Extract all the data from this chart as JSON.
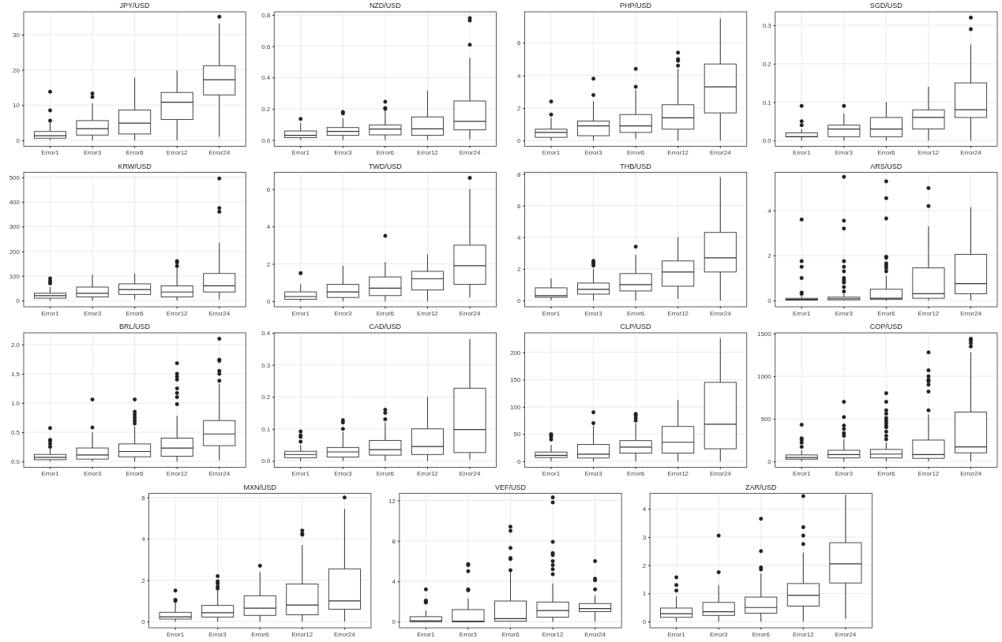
{
  "chart_data": [
    {
      "type": "box",
      "title": "JPY/USD",
      "categories": [
        "Error1",
        "Error3",
        "Error6",
        "Error12",
        "Error24"
      ],
      "ylim": [
        -1.7,
        36.5
      ],
      "yticks": [
        0,
        10,
        20,
        30
      ],
      "grid": true,
      "boxes": [
        {
          "low": 0,
          "q1": 0.6,
          "median": 1.3,
          "q3": 2.5,
          "high": 5,
          "outliers": [
            5.6,
            8.5,
            13.8
          ]
        },
        {
          "low": 0,
          "q1": 1.5,
          "median": 3.3,
          "q3": 5.6,
          "high": 10.5,
          "outliers": [
            12.3,
            13.3
          ]
        },
        {
          "low": 0,
          "q1": 1.8,
          "median": 4.9,
          "q3": 8.6,
          "high": 17.8
        },
        {
          "low": 0,
          "q1": 5.9,
          "median": 10.8,
          "q3": 13.6,
          "high": 19.8
        },
        {
          "low": 1,
          "q1": 12.9,
          "median": 17.2,
          "q3": 21.2,
          "high": 33.2,
          "outliers": [
            35.1
          ]
        }
      ]
    },
    {
      "type": "box",
      "title": "NZD/USD",
      "categories": [
        "Error1",
        "Error3",
        "Error6",
        "Error12",
        "Error24"
      ],
      "ylim": [
        -0.04,
        0.82
      ],
      "yticks": [
        {
          "value": 0,
          "label": "0.0"
        },
        {
          "value": 0.2,
          "label": "0.2"
        },
        {
          "value": 0.4,
          "label": "0.4"
        },
        {
          "value": 0.6,
          "label": "0.6"
        },
        {
          "value": 0.8,
          "label": "0.8"
        }
      ],
      "grid": true,
      "boxes": [
        {
          "low": 0,
          "q1": 0.015,
          "median": 0.03,
          "q3": 0.058,
          "high": 0.11,
          "outliers": [
            0.135
          ]
        },
        {
          "low": 0,
          "q1": 0.03,
          "median": 0.055,
          "q3": 0.08,
          "high": 0.14,
          "outliers": [
            0.17,
            0.18
          ]
        },
        {
          "low": 0,
          "q1": 0.033,
          "median": 0.07,
          "q3": 0.097,
          "high": 0.19,
          "outliers": [
            0.2,
            0.205,
            0.245
          ]
        },
        {
          "low": 0,
          "q1": 0.03,
          "median": 0.072,
          "q3": 0.148,
          "high": 0.315
        },
        {
          "low": 0.005,
          "q1": 0.065,
          "median": 0.12,
          "q3": 0.25,
          "high": 0.525,
          "outliers": [
            0.61,
            0.765,
            0.78
          ]
        }
      ]
    },
    {
      "type": "box",
      "title": "PHP/USD",
      "categories": [
        "Error1",
        "Error3",
        "Error6",
        "Error12",
        "Error24"
      ],
      "ylim": [
        -0.35,
        7.9
      ],
      "yticks": [
        0,
        2,
        4,
        6
      ],
      "grid": true,
      "boxes": [
        {
          "low": 0,
          "q1": 0.2,
          "median": 0.5,
          "q3": 0.7,
          "high": 1.4,
          "outliers": [
            1.6,
            2.4
          ]
        },
        {
          "low": 0,
          "q1": 0.3,
          "median": 0.9,
          "q3": 1.2,
          "high": 2.4,
          "outliers": [
            2.8,
            3.8
          ]
        },
        {
          "low": 0.1,
          "q1": 0.5,
          "median": 0.9,
          "q3": 1.6,
          "high": 3.1,
          "outliers": [
            3.3,
            4.4
          ]
        },
        {
          "low": 0,
          "q1": 0.7,
          "median": 1.4,
          "q3": 2.2,
          "high": 4.4,
          "outliers": [
            4.6,
            4.9,
            5.0,
            5.4
          ]
        },
        {
          "low": 0,
          "q1": 1.7,
          "median": 3.3,
          "q3": 4.7,
          "high": 7.5
        }
      ]
    },
    {
      "type": "box",
      "title": "SGD/USD",
      "categories": [
        "Error1",
        "Error3",
        "Error6",
        "Error12",
        "Error24"
      ],
      "ylim": [
        -0.015,
        0.335
      ],
      "yticks": [
        {
          "value": 0,
          "label": "0.0"
        },
        {
          "value": 0.1,
          "label": "0.1"
        },
        {
          "value": 0.2,
          "label": "0.2"
        },
        {
          "value": 0.3,
          "label": "0.3"
        }
      ],
      "grid": true,
      "boxes": [
        {
          "low": 0,
          "q1": 0.01,
          "median": 0.01,
          "q3": 0.02,
          "high": 0.03,
          "outliers": [
            0.04,
            0.05,
            0.09
          ]
        },
        {
          "low": 0,
          "q1": 0.01,
          "median": 0.03,
          "q3": 0.04,
          "high": 0.07,
          "outliers": [
            0.09
          ]
        },
        {
          "low": 0,
          "q1": 0.01,
          "median": 0.03,
          "q3": 0.06,
          "high": 0.1
        },
        {
          "low": 0,
          "q1": 0.03,
          "median": 0.06,
          "q3": 0.08,
          "high": 0.14
        },
        {
          "low": 0,
          "q1": 0.06,
          "median": 0.08,
          "q3": 0.15,
          "high": 0.25,
          "outliers": [
            0.29,
            0.32
          ]
        }
      ]
    },
    {
      "type": "box",
      "title": "KRW/USD",
      "categories": [
        "Error1",
        "Error3",
        "Error6",
        "Error12",
        "Error24"
      ],
      "ylim": [
        -25,
        520
      ],
      "yticks": [
        0,
        100,
        200,
        300,
        400,
        500
      ],
      "grid": true,
      "boxes": [
        {
          "low": 0,
          "q1": 10,
          "median": 20,
          "q3": 30,
          "high": 55,
          "outliers": [
            70,
            80,
            90
          ]
        },
        {
          "low": 0,
          "q1": 15,
          "median": 30,
          "q3": 55,
          "high": 105
        },
        {
          "low": 5,
          "q1": 25,
          "median": 45,
          "q3": 68,
          "high": 110
        },
        {
          "low": 0,
          "q1": 15,
          "median": 35,
          "q3": 60,
          "high": 130,
          "outliers": [
            140,
            155,
            160
          ]
        },
        {
          "low": 5,
          "q1": 35,
          "median": 60,
          "q3": 110,
          "high": 235,
          "outliers": [
            360,
            375,
            495
          ]
        }
      ]
    },
    {
      "type": "box",
      "title": "TWD/USD",
      "categories": [
        "Error1",
        "Error3",
        "Error6",
        "Error12",
        "Error24"
      ],
      "ylim": [
        -0.3,
        6.9
      ],
      "yticks": [
        0,
        2,
        4,
        6
      ],
      "grid": true,
      "boxes": [
        {
          "low": 0,
          "q1": 0.1,
          "median": 0.25,
          "q3": 0.5,
          "high": 0.9,
          "outliers": [
            1.5
          ]
        },
        {
          "low": 0,
          "q1": 0.2,
          "median": 0.5,
          "q3": 0.9,
          "high": 1.9
        },
        {
          "low": 0,
          "q1": 0.3,
          "median": 0.7,
          "q3": 1.3,
          "high": 2.1,
          "outliers": [
            3.5
          ]
        },
        {
          "low": 0,
          "q1": 0.6,
          "median": 1.2,
          "q3": 1.6,
          "high": 2.5
        },
        {
          "low": 0.2,
          "q1": 0.9,
          "median": 1.9,
          "q3": 3.0,
          "high": 6.0,
          "outliers": [
            6.6
          ]
        }
      ]
    },
    {
      "type": "box",
      "title": "THB/USD",
      "categories": [
        "Error1",
        "Error3",
        "Error6",
        "Error12",
        "Error24"
      ],
      "ylim": [
        -0.4,
        8.1
      ],
      "yticks": [
        0,
        2,
        4,
        6,
        8
      ],
      "grid": true,
      "boxes": [
        {
          "low": 0,
          "q1": 0.2,
          "median": 0.3,
          "q3": 0.8,
          "high": 1.4
        },
        {
          "low": 0,
          "q1": 0.4,
          "median": 0.7,
          "q3": 1.1,
          "high": 2.0,
          "outliers": [
            2.2,
            2.3,
            2.4,
            2.5
          ]
        },
        {
          "low": 0,
          "q1": 0.6,
          "median": 1.0,
          "q3": 1.7,
          "high": 2.9,
          "outliers": [
            3.4
          ]
        },
        {
          "low": 0.1,
          "q1": 0.9,
          "median": 1.8,
          "q3": 2.5,
          "high": 4.0
        },
        {
          "low": 0,
          "q1": 1.8,
          "median": 2.7,
          "q3": 4.3,
          "high": 7.8
        }
      ]
    },
    {
      "type": "box",
      "title": "ARS/USD",
      "categories": [
        "Error1",
        "Error3",
        "Error6",
        "Error12",
        "Error24"
      ],
      "ylim": [
        -0.28,
        5.7
      ],
      "yticks": [
        0,
        2,
        4
      ],
      "grid": true,
      "boxes": [
        {
          "low": 0,
          "q1": 0.02,
          "median": 0.05,
          "q3": 0.1,
          "high": 0.2,
          "outliers": [
            0.3,
            0.35,
            1.0,
            1.5,
            1.75,
            3.6
          ]
        },
        {
          "low": 0,
          "q1": 0.03,
          "median": 0.08,
          "q3": 0.15,
          "high": 0.3,
          "outliers": [
            0.4,
            0.6,
            0.8,
            0.9,
            1.0,
            1.3,
            1.5,
            1.75,
            3.2,
            3.55,
            5.5
          ]
        },
        {
          "low": 0,
          "q1": 0.05,
          "median": 0.1,
          "q3": 0.5,
          "high": 1.1,
          "outliers": [
            1.3,
            1.45,
            1.55,
            1.65,
            1.9,
            1.95,
            3.65,
            4.55,
            5.3
          ]
        },
        {
          "low": 0,
          "q1": 0.1,
          "median": 0.3,
          "q3": 1.45,
          "high": 3.3,
          "outliers": [
            4.2,
            5.0
          ]
        },
        {
          "low": 0,
          "q1": 0.3,
          "median": 0.75,
          "q3": 2.05,
          "high": 4.15
        }
      ]
    },
    {
      "type": "box",
      "title": "BRL/USD",
      "categories": [
        "Error1",
        "Error3",
        "Error6",
        "Error12",
        "Error24"
      ],
      "ylim": [
        -0.1,
        2.2
      ],
      "yticks": [
        {
          "value": 0,
          "label": "0.0"
        },
        {
          "value": 0.5,
          "label": "0.5"
        },
        {
          "value": 1,
          "label": "1.0"
        },
        {
          "value": 1.5,
          "label": "1.5"
        },
        {
          "value": 2,
          "label": "2.0"
        }
      ],
      "grid": true,
      "boxes": [
        {
          "low": 0,
          "q1": 0.03,
          "median": 0.07,
          "q3": 0.12,
          "high": 0.22,
          "outliers": [
            0.25,
            0.3,
            0.35,
            0.37,
            0.57
          ]
        },
        {
          "low": 0,
          "q1": 0.04,
          "median": 0.11,
          "q3": 0.23,
          "high": 0.5,
          "outliers": [
            0.58,
            1.06
          ]
        },
        {
          "low": 0,
          "q1": 0.08,
          "median": 0.17,
          "q3": 0.3,
          "high": 0.6,
          "outliers": [
            0.65,
            0.7,
            0.75,
            0.8,
            0.85,
            1.06
          ]
        },
        {
          "low": 0,
          "q1": 0.09,
          "median": 0.23,
          "q3": 0.4,
          "high": 0.78,
          "outliers": [
            0.98,
            1.1,
            1.17,
            1.25,
            1.4,
            1.45,
            1.5,
            1.68
          ]
        },
        {
          "low": 0.02,
          "q1": 0.27,
          "median": 0.47,
          "q3": 0.7,
          "high": 1.33,
          "outliers": [
            1.38,
            1.5,
            1.55,
            1.72,
            1.74,
            2.1
          ]
        }
      ]
    },
    {
      "type": "box",
      "title": "CAD/USD",
      "categories": [
        "Error1",
        "Error3",
        "Error6",
        "Error12",
        "Error24"
      ],
      "ylim": [
        -0.02,
        0.4
      ],
      "yticks": [
        {
          "value": 0,
          "label": "0.0"
        },
        {
          "value": 0.1,
          "label": "0.1"
        },
        {
          "value": 0.2,
          "label": "0.2"
        },
        {
          "value": 0.3,
          "label": "0.3"
        },
        {
          "value": 0.4,
          "label": "0.4"
        }
      ],
      "grid": true,
      "boxes": [
        {
          "low": 0,
          "q1": 0.01,
          "median": 0.02,
          "q3": 0.03,
          "high": 0.05,
          "outliers": [
            0.06,
            0.075,
            0.08,
            0.092
          ]
        },
        {
          "low": 0,
          "q1": 0.012,
          "median": 0.028,
          "q3": 0.042,
          "high": 0.09,
          "outliers": [
            0.1,
            0.12,
            0.127
          ]
        },
        {
          "low": 0,
          "q1": 0.018,
          "median": 0.035,
          "q3": 0.064,
          "high": 0.12,
          "outliers": [
            0.13,
            0.15,
            0.16
          ]
        },
        {
          "low": 0,
          "q1": 0.02,
          "median": 0.045,
          "q3": 0.1,
          "high": 0.2
        },
        {
          "low": 0.005,
          "q1": 0.026,
          "median": 0.098,
          "q3": 0.227,
          "high": 0.38
        }
      ]
    },
    {
      "type": "box",
      "title": "CLP/USD",
      "categories": [
        "Error1",
        "Error3",
        "Error6",
        "Error12",
        "Error24"
      ],
      "ylim": [
        -11,
        236
      ],
      "yticks": [
        0,
        50,
        100,
        150,
        200
      ],
      "grid": true,
      "boxes": [
        {
          "low": 0,
          "q1": 7,
          "median": 11,
          "q3": 17,
          "high": 30,
          "outliers": [
            40,
            45,
            48,
            50
          ]
        },
        {
          "low": 0,
          "q1": 6,
          "median": 13,
          "q3": 31,
          "high": 65,
          "outliers": [
            70,
            90
          ]
        },
        {
          "low": 0,
          "q1": 15,
          "median": 26,
          "q3": 38,
          "high": 70,
          "outliers": [
            75,
            80,
            85,
            87
          ]
        },
        {
          "low": 0,
          "q1": 15,
          "median": 35,
          "q3": 64,
          "high": 113
        },
        {
          "low": 0,
          "q1": 23,
          "median": 68,
          "q3": 145,
          "high": 226
        }
      ]
    },
    {
      "type": "box",
      "title": "COP/USD",
      "categories": [
        "Error1",
        "Error3",
        "Error6",
        "Error12",
        "Error24"
      ],
      "ylim": [
        -70,
        1510
      ],
      "yticks": [
        0,
        500,
        1000,
        1500
      ],
      "grid": true,
      "boxes": [
        {
          "low": 0,
          "q1": 25,
          "median": 45,
          "q3": 75,
          "high": 130,
          "outliers": [
            170,
            220,
            250,
            270,
            430
          ]
        },
        {
          "low": 0,
          "q1": 40,
          "median": 80,
          "q3": 130,
          "high": 260,
          "outliers": [
            300,
            330,
            380,
            420,
            520,
            700
          ]
        },
        {
          "low": 0,
          "q1": 40,
          "median": 85,
          "q3": 140,
          "high": 220,
          "outliers": [
            260,
            300,
            350,
            400,
            420,
            450,
            480,
            510,
            560,
            600,
            700,
            800
          ]
        },
        {
          "low": 0,
          "q1": 35,
          "median": 80,
          "q3": 250,
          "high": 550,
          "outliers": [
            600,
            820,
            900,
            940,
            960,
            1000,
            1070,
            1280
          ]
        },
        {
          "low": 0,
          "q1": 100,
          "median": 170,
          "q3": 580,
          "high": 1280,
          "outliers": [
            1350,
            1390,
            1420,
            1440
          ]
        }
      ]
    },
    {
      "type": "box",
      "title": "MXN/USD",
      "categories": [
        "Error1",
        "Error3",
        "Error6",
        "Error12",
        "Error24"
      ],
      "ylim": [
        -0.3,
        6.2
      ],
      "yticks": [
        0,
        2,
        4,
        6
      ],
      "grid": true,
      "boxes": [
        {
          "low": 0,
          "q1": 0.12,
          "median": 0.23,
          "q3": 0.45,
          "high": 0.9,
          "outliers": [
            1.0,
            1.05,
            1.5
          ]
        },
        {
          "low": 0,
          "q1": 0.22,
          "median": 0.43,
          "q3": 0.78,
          "high": 1.5,
          "outliers": [
            1.6,
            1.7,
            1.85,
            1.95,
            2.2
          ]
        },
        {
          "low": 0,
          "q1": 0.3,
          "median": 0.65,
          "q3": 1.25,
          "high": 2.4,
          "outliers": [
            2.7
          ]
        },
        {
          "low": 0,
          "q1": 0.33,
          "median": 0.8,
          "q3": 1.82,
          "high": 3.7,
          "outliers": [
            4.2,
            4.25,
            4.4
          ]
        },
        {
          "low": 0,
          "q1": 0.6,
          "median": 1.0,
          "q3": 2.55,
          "high": 5.45,
          "outliers": [
            6.0
          ]
        }
      ]
    },
    {
      "type": "box",
      "title": "VEF/USD",
      "categories": [
        "Error1",
        "Error3",
        "Error6",
        "Error12",
        "Error24"
      ],
      "ylim": [
        -0.6,
        12.7
      ],
      "yticks": [
        0,
        4,
        8,
        12
      ],
      "grid": true,
      "boxes": [
        {
          "low": 0,
          "q1": 0,
          "median": 0.1,
          "q3": 0.5,
          "high": 1.1,
          "outliers": [
            1.9,
            2.0,
            2.1,
            3.2
          ]
        },
        {
          "low": 0,
          "q1": 0,
          "median": 0.05,
          "q3": 1.2,
          "high": 2.3,
          "outliers": [
            3.1,
            3.2,
            5.0,
            5.6,
            5.7
          ]
        },
        {
          "low": 0,
          "q1": 0.05,
          "median": 0.3,
          "q3": 2.05,
          "high": 5.0,
          "outliers": [
            5.1,
            6.2,
            6.3,
            7.3,
            9.0,
            9.4
          ]
        },
        {
          "low": 0,
          "q1": 0.45,
          "median": 1.1,
          "q3": 1.95,
          "high": 3.8,
          "outliers": [
            4.7,
            5.2,
            5.6,
            6.0,
            6.6,
            6.8,
            7.9,
            11.8,
            12.3
          ]
        },
        {
          "low": 0,
          "q1": 1.0,
          "median": 1.3,
          "q3": 1.8,
          "high": 2.6,
          "outliers": [
            3.2,
            4.1,
            4.25,
            6.0
          ]
        }
      ]
    },
    {
      "type": "box",
      "title": "ZAR/USD",
      "categories": [
        "Error1",
        "Error3",
        "Error6",
        "Error12",
        "Error24"
      ],
      "ylim": [
        -0.22,
        4.55
      ],
      "yticks": [
        0,
        1,
        2,
        3,
        4
      ],
      "grid": true,
      "boxes": [
        {
          "low": 0,
          "q1": 0.15,
          "median": 0.28,
          "q3": 0.48,
          "high": 0.9,
          "outliers": [
            1.1,
            1.3,
            1.57
          ]
        },
        {
          "low": 0,
          "q1": 0.22,
          "median": 0.35,
          "q3": 0.68,
          "high": 1.3,
          "outliers": [
            1.75,
            3.05
          ]
        },
        {
          "low": 0,
          "q1": 0.3,
          "median": 0.5,
          "q3": 0.87,
          "high": 1.7,
          "outliers": [
            1.85,
            1.92,
            2.5,
            3.65
          ]
        },
        {
          "low": 0,
          "q1": 0.55,
          "median": 0.93,
          "q3": 1.35,
          "high": 2.45,
          "outliers": [
            2.75,
            3.05,
            3.35,
            4.45
          ]
        },
        {
          "low": 0.1,
          "q1": 1.37,
          "median": 2.05,
          "q3": 2.8,
          "high": 4.5
        }
      ]
    }
  ]
}
